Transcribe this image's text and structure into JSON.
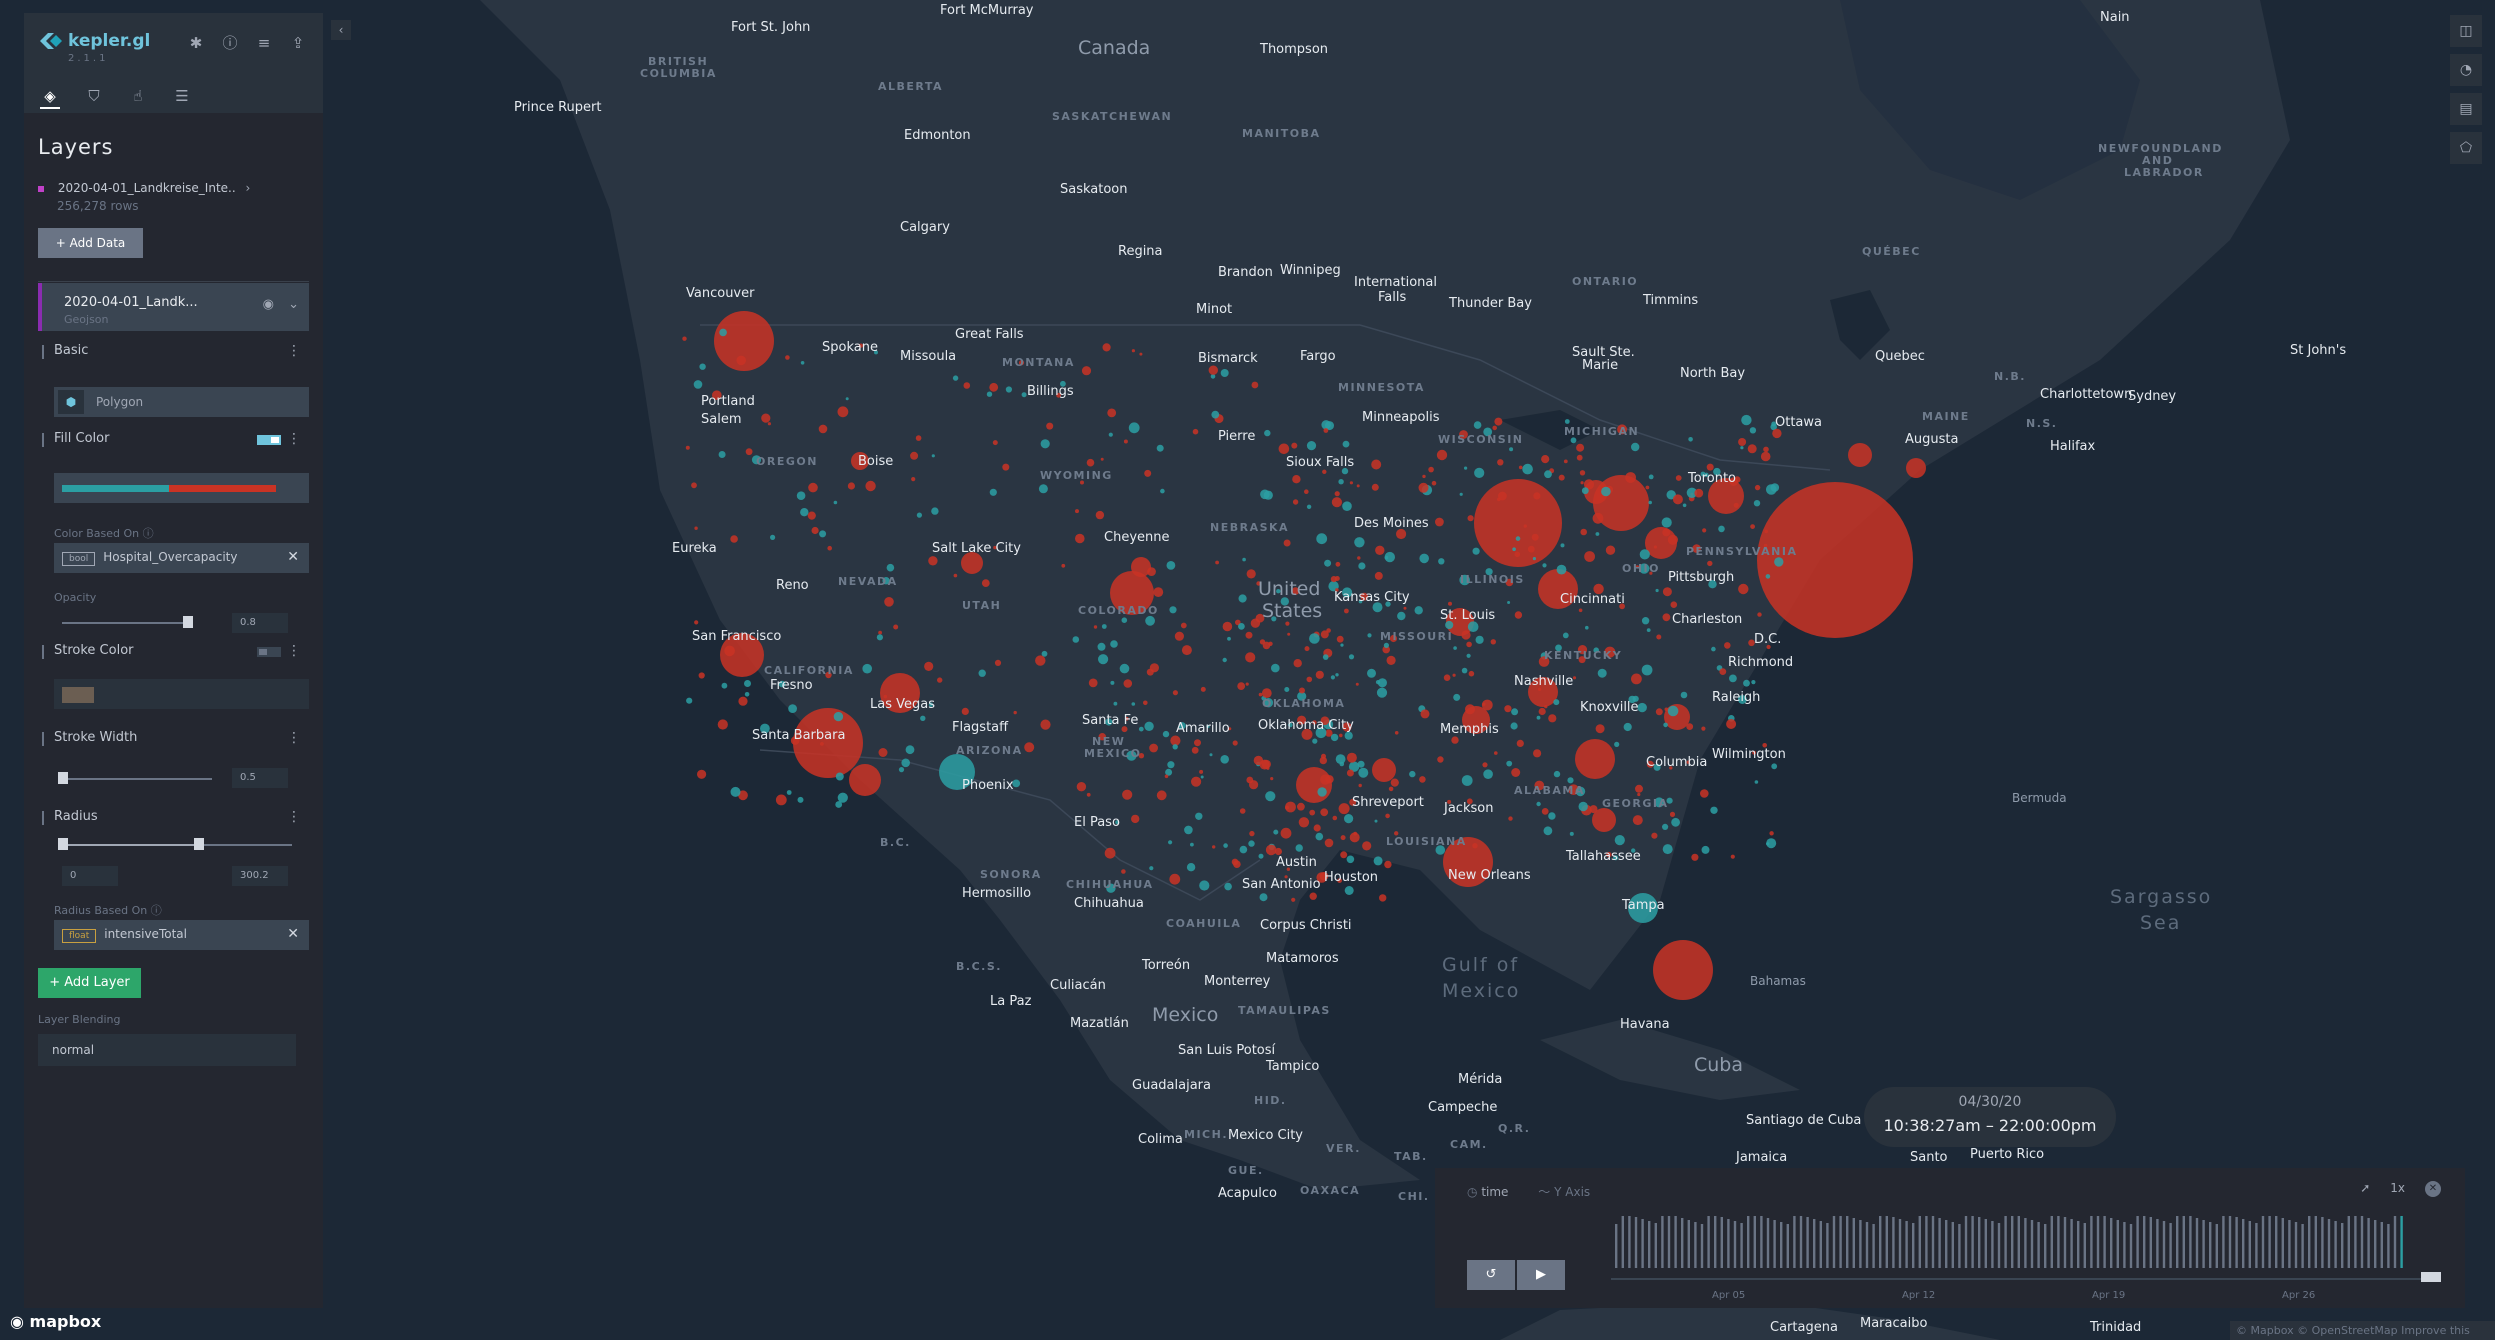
{
  "app": {
    "name": "kepler.gl",
    "version": "2.1.1"
  },
  "colors": {
    "red": "#c93324",
    "teal": "#2b9fa3",
    "panel": "#242730",
    "map": "#1c2836"
  },
  "header_icons": [
    "bug-icon",
    "info-icon",
    "database-icon",
    "share-icon"
  ],
  "tabs": [
    "layers-tab",
    "filters-tab",
    "interactions-tab",
    "basemap-tab"
  ],
  "layers_panel": {
    "title": "Layers",
    "dataset": {
      "name": "2020-04-01_Landkreise_Inte..",
      "rows": "256,278 rows"
    },
    "add_data_label": "+  Add Data",
    "layer": {
      "name": "2020-04-01_Landk...",
      "type": "Geojson"
    },
    "basic": {
      "label": "Basic",
      "layer_type": "Polygon"
    },
    "fill_color": {
      "label": "Fill Color",
      "color_based_on_label": "Color Based On",
      "field_type": "bool",
      "field": "Hospital_Overcapacity",
      "opacity_label": "Opacity",
      "opacity": "0.8"
    },
    "stroke_color": {
      "label": "Stroke Color"
    },
    "stroke_width": {
      "label": "Stroke Width",
      "value": "0.5"
    },
    "radius": {
      "label": "Radius",
      "min": "0",
      "max": "300.2",
      "based_on_label": "Radius Based On",
      "field_type": "float",
      "field": "intensiveTotal"
    },
    "add_layer_label": "+  Add Layer",
    "blending_label": "Layer Blending",
    "blending": "normal"
  },
  "map_labels": {
    "countries": [
      "Canada",
      "United States",
      "Mexico",
      "Cuba"
    ],
    "water": [
      "Gulf of Mexico",
      "Sargasso Sea",
      "Bermuda",
      "Bahamas"
    ]
  },
  "timeline": {
    "date": "04/30/20",
    "start_time": "10:38:27am",
    "dash": "–",
    "end_time": "22:00:00pm",
    "x_field": "time",
    "y_label": "Y Axis",
    "speed": "1x",
    "ticks": [
      "Apr 05",
      "Apr 12",
      "Apr 19",
      "Apr 26"
    ]
  },
  "attribution": {
    "mapbox": "mapbox",
    "text": "© Mapbox © OpenStreetMap  Improve this map"
  }
}
